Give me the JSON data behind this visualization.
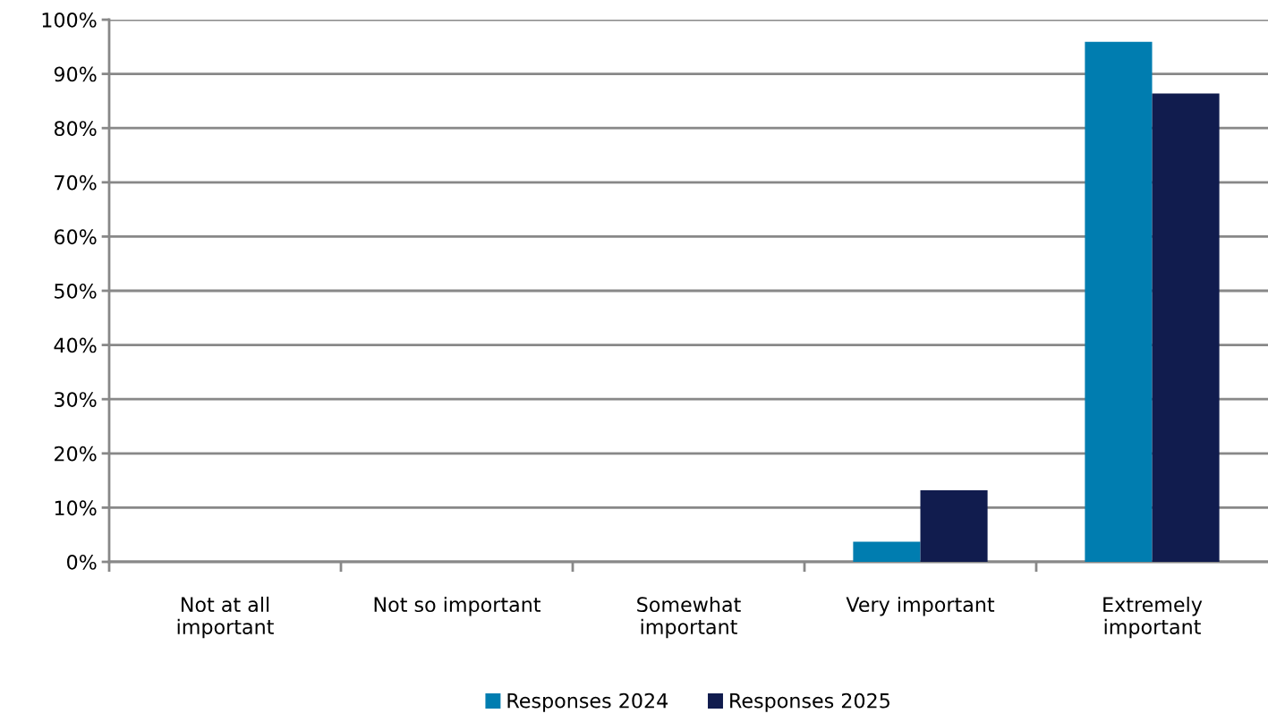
{
  "chart_data": {
    "type": "bar",
    "categories": [
      "Not at all\nimportant",
      "Not so important",
      "Somewhat\nimportant",
      "Very important",
      "Extremely\nimportant"
    ],
    "series": [
      {
        "name": "Responses 2024",
        "color": "#007db0",
        "values": [
          0,
          0,
          0,
          3.7,
          95.9
        ]
      },
      {
        "name": "Responses 2025",
        "color": "#111c4e",
        "values": [
          0,
          0,
          0,
          13.2,
          86.4
        ]
      }
    ],
    "ylim": [
      0,
      100
    ],
    "yticks": [
      {
        "value": 0,
        "label": "0%"
      },
      {
        "value": 10,
        "label": "10%"
      },
      {
        "value": 20,
        "label": "20%"
      },
      {
        "value": 30,
        "label": "30%"
      },
      {
        "value": 40,
        "label": "40%"
      },
      {
        "value": 50,
        "label": "50%"
      },
      {
        "value": 60,
        "label": "60%"
      },
      {
        "value": 70,
        "label": "70%"
      },
      {
        "value": 80,
        "label": "80%"
      },
      {
        "value": 90,
        "label": "90%"
      },
      {
        "value": 100,
        "label": "100%"
      }
    ],
    "grid": "y",
    "legend": "bottom"
  }
}
